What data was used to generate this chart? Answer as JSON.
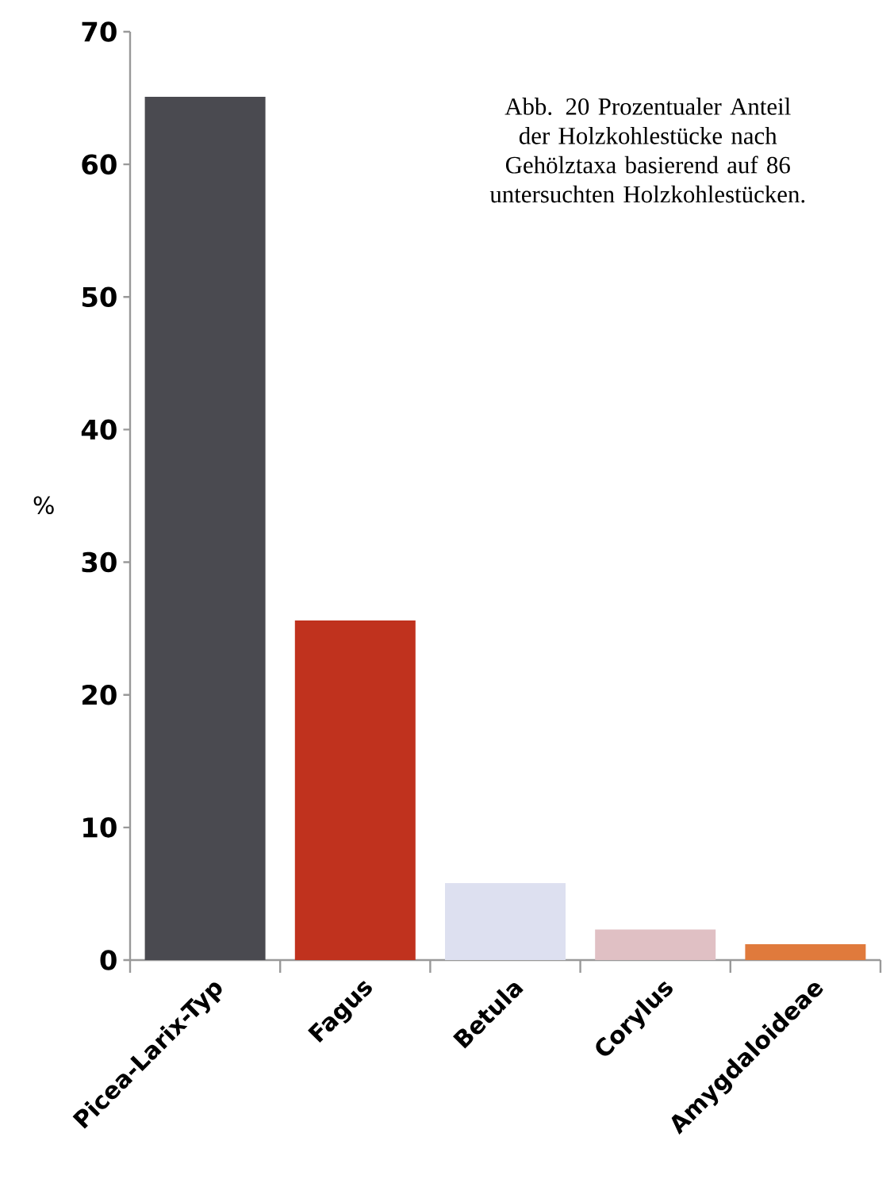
{
  "chart_data": {
    "type": "bar",
    "categories": [
      "Picea-Larix-Typ",
      "Fagus",
      "Betula",
      "Corylus",
      "Amygdaloideae"
    ],
    "values": [
      65.1,
      25.6,
      5.8,
      2.3,
      1.2
    ],
    "colors": [
      "#4a4a50",
      "#c0321e",
      "#dde0f0",
      "#e0c0c4",
      "#e07a3c"
    ],
    "ylabel": "%",
    "ylim": [
      0,
      70
    ],
    "yticks": [
      0,
      10,
      20,
      30,
      40,
      50,
      60,
      70
    ],
    "grid": false,
    "annotations": [
      "Abb. 20  Prozentualer Anteil der Holzkohlestücke nach Gehölztaxa basierend auf 86 untersuchten Holzkohlestücken."
    ]
  }
}
